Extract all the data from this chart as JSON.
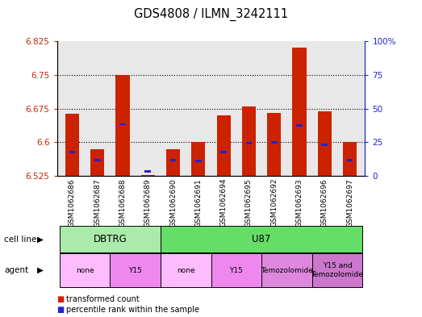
{
  "title": "GDS4808 / ILMN_3242111",
  "samples": [
    "GSM1062686",
    "GSM1062687",
    "GSM1062688",
    "GSM1062689",
    "GSM1062690",
    "GSM1062691",
    "GSM1062694",
    "GSM1062695",
    "GSM1062692",
    "GSM1062693",
    "GSM1062696",
    "GSM1062697"
  ],
  "red_values": [
    6.663,
    6.585,
    6.75,
    6.527,
    6.585,
    6.6,
    6.66,
    6.68,
    6.665,
    6.81,
    6.668,
    6.6
  ],
  "blue_values": [
    6.578,
    6.56,
    6.64,
    6.535,
    6.56,
    6.558,
    6.578,
    6.598,
    6.6,
    6.638,
    6.595,
    6.56
  ],
  "ylim_left": [
    6.525,
    6.825
  ],
  "ylim_right": [
    0,
    100
  ],
  "yticks_left": [
    6.525,
    6.6,
    6.675,
    6.75,
    6.825
  ],
  "yticks_right": [
    0,
    25,
    50,
    75,
    100
  ],
  "ytick_labels_left": [
    "6.525",
    "6.6",
    "6.675",
    "6.75",
    "6.825"
  ],
  "ytick_labels_right": [
    "0",
    "25",
    "50",
    "75",
    "100%"
  ],
  "bar_color": "#cc2200",
  "blue_color": "#2222cc",
  "plot_bg": "#e8e8e8",
  "cell_line_groups": [
    {
      "label": "DBTRG",
      "start": 0,
      "end": 3,
      "color": "#aaeaaa"
    },
    {
      "label": "U87",
      "start": 4,
      "end": 11,
      "color": "#66dd66"
    }
  ],
  "agent_groups": [
    {
      "label": "none",
      "start": 0,
      "end": 1,
      "color": "#ffbbff"
    },
    {
      "label": "Y15",
      "start": 2,
      "end": 3,
      "color": "#ee88ee"
    },
    {
      "label": "none",
      "start": 4,
      "end": 5,
      "color": "#ffbbff"
    },
    {
      "label": "Y15",
      "start": 6,
      "end": 7,
      "color": "#ee88ee"
    },
    {
      "label": "Temozolomide",
      "start": 8,
      "end": 9,
      "color": "#dd88dd"
    },
    {
      "label": "Y15 and\nTemozolomide",
      "start": 10,
      "end": 11,
      "color": "#cc77cc"
    }
  ],
  "legend_items": [
    {
      "label": "transformed count",
      "color": "#cc2200"
    },
    {
      "label": "percentile rank within the sample",
      "color": "#2222cc"
    }
  ],
  "left_tick_color": "#cc2200",
  "right_tick_color": "#2222cc"
}
